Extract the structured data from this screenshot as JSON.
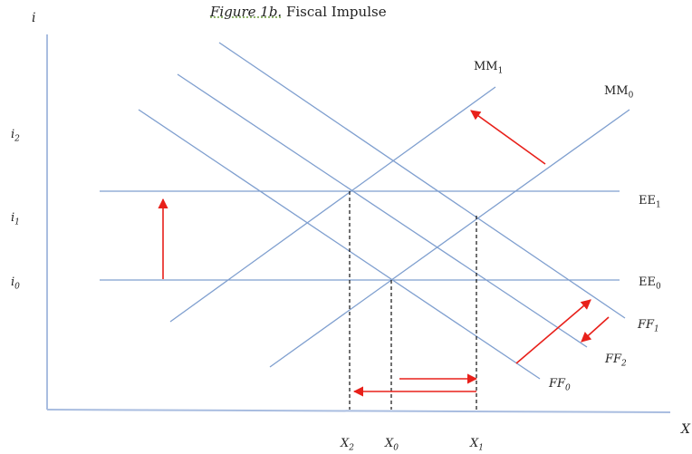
{
  "title": {
    "italic": "Figure 1b.",
    "rest": " Fiscal Impulse"
  },
  "axes": {
    "y_label": "i",
    "x_label": "X"
  },
  "y_ticks": [
    {
      "base": "i",
      "sub": "2"
    },
    {
      "base": "i",
      "sub": "1"
    },
    {
      "base": "i",
      "sub": "0"
    }
  ],
  "x_ticks": [
    {
      "base": "X",
      "sub": "2"
    },
    {
      "base": "X",
      "sub": "0"
    },
    {
      "base": "X",
      "sub": "1"
    }
  ],
  "curves": {
    "mm1": {
      "base": "MM",
      "sub": "1"
    },
    "mm0": {
      "base": "MM",
      "sub": "0"
    },
    "ee1": {
      "base": "EE",
      "sub": "1"
    },
    "ee0": {
      "base": "EE",
      "sub": "0"
    },
    "ff1": {
      "base": "FF",
      "sub": "1"
    },
    "ff2": {
      "base": "FF",
      "sub": "2"
    },
    "ff0": {
      "base": "FF",
      "sub": "0"
    }
  },
  "colors": {
    "curve": "#7f9fcf",
    "arrow": "#e8201a",
    "axis": "#a9bde0",
    "guide": "#111111"
  }
}
